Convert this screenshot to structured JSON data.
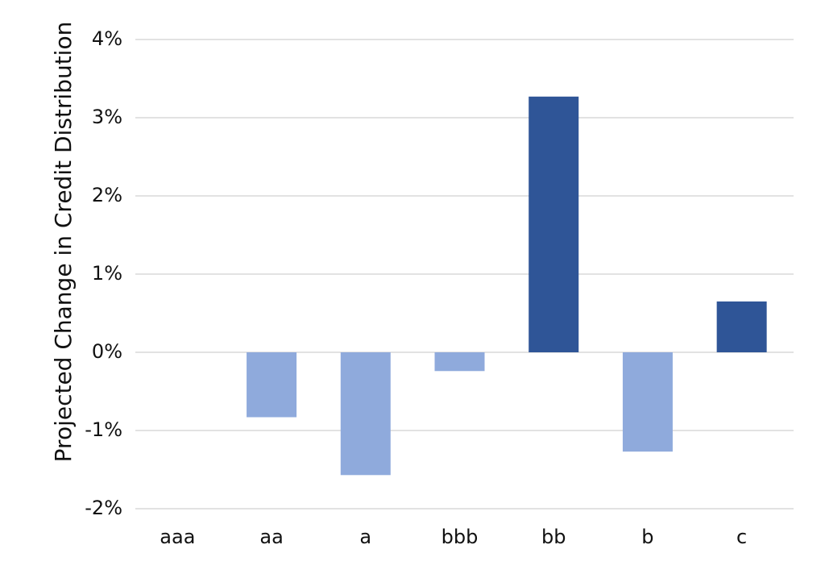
{
  "chart_data": {
    "type": "bar",
    "y_label": "Projected Change in Credit Distribution",
    "categories": [
      "aaa",
      "aa",
      "a",
      "bbb",
      "bb",
      "b",
      "c"
    ],
    "values": [
      0,
      -0.83,
      -1.57,
      -0.24,
      3.27,
      -1.27,
      0.65
    ],
    "colors": [
      "#8faadc",
      "#8faadc",
      "#8faadc",
      "#8faadc",
      "#2f5597",
      "#8faadc",
      "#2f5597"
    ],
    "ylim": [
      -2,
      4
    ],
    "yticks": [
      {
        "value": -2,
        "label": "-2%"
      },
      {
        "value": -1,
        "label": "-1%"
      },
      {
        "value": 0,
        "label": "0%"
      },
      {
        "value": 1,
        "label": "1%"
      },
      {
        "value": 2,
        "label": "2%"
      },
      {
        "value": 3,
        "label": "3%"
      },
      {
        "value": 4,
        "label": "4%"
      }
    ],
    "grid": true
  }
}
